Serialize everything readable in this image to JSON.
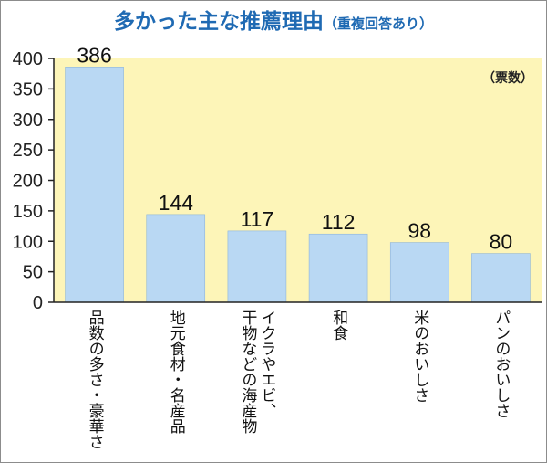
{
  "chart_data": {
    "type": "bar",
    "title": "多かった主な推薦理由",
    "subtitle": "（重複回答あり）",
    "unit": "（票数）",
    "categories": [
      [
        "品数の多さ・豪華さ"
      ],
      [
        "地元食材・名産品"
      ],
      [
        "イクラやエビ、",
        "干物などの海産物"
      ],
      [
        "和食"
      ],
      [
        "米のおいしさ"
      ],
      [
        "パンのおいしさ"
      ]
    ],
    "values": [
      386,
      144,
      117,
      112,
      98,
      80
    ],
    "yticks": [
      0,
      50,
      100,
      150,
      200,
      250,
      300,
      350,
      400
    ],
    "ylim": [
      0,
      400
    ],
    "grid": false,
    "colors": {
      "plot_bg": "#fdf5b8",
      "bar": "#b9d8f3",
      "title": "#1f6ab3"
    }
  }
}
